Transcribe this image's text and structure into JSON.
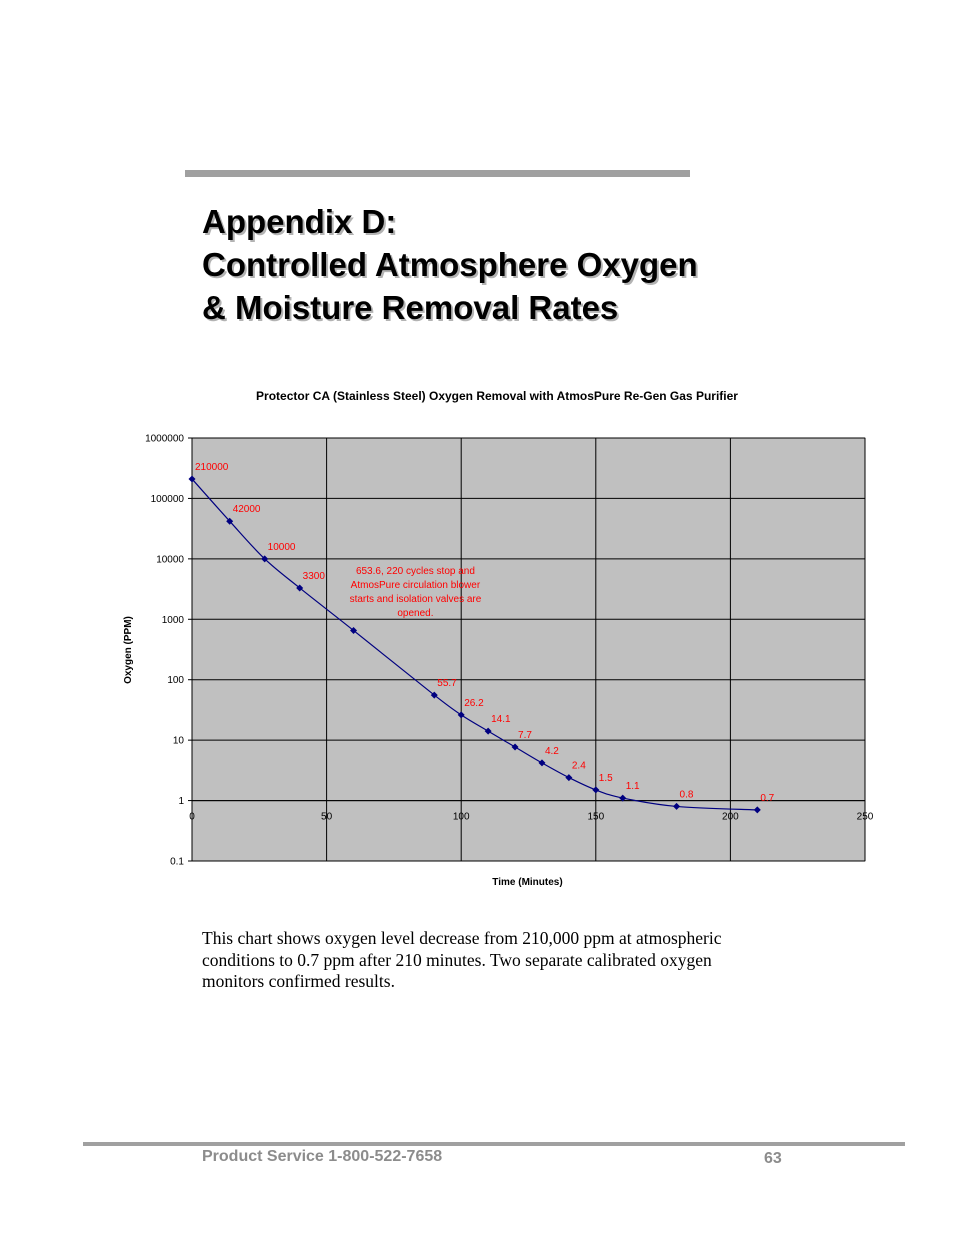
{
  "page": {
    "title_lines": [
      "Appendix D:",
      "Controlled Atmosphere Oxygen",
      "& Moisture Removal Rates"
    ],
    "caption_lines": [
      "This chart shows oxygen level decrease from 210,000 ppm at atmospheric",
      "conditions to 0.7 ppm after 210 minutes.  Two separate calibrated oxygen",
      "monitors confirmed results."
    ],
    "footer": {
      "service": "Product Service 1-800-522-7658",
      "page_number": "63"
    }
  },
  "chart_data": {
    "type": "line",
    "title": "Protector CA (Stainless Steel) Oxygen Removal with AtmosPure Re-Gen Gas Purifier",
    "xlabel": "Time (Minutes)",
    "ylabel": "Oxygen (PPM)",
    "yscale": "log",
    "xlim": [
      0,
      250
    ],
    "ylim": [
      0.1,
      1000000
    ],
    "x_ticks": [
      "0",
      "50",
      "100",
      "150",
      "200",
      "250"
    ],
    "y_ticks": [
      "1000000",
      "100000",
      "10000",
      "1000",
      "100",
      "10",
      "1",
      "0.1"
    ],
    "series": [
      {
        "name": "Oxygen",
        "x": [
          0,
          14,
          27,
          40,
          60,
          90,
          100,
          110,
          120,
          130,
          140,
          150,
          160,
          180,
          210
        ],
        "y": [
          210000,
          42000,
          10000,
          3300,
          653.6,
          55.7,
          26.2,
          14.1,
          7.7,
          4.2,
          2.4,
          1.5,
          1.1,
          0.8,
          0.7
        ],
        "labels": [
          "210000",
          "42000",
          "10000",
          "3300",
          "",
          "55.7",
          "26.2",
          "14.1",
          "7.7",
          "4.2",
          "2.4",
          "1.5",
          "1.1",
          "0.8",
          "0.7"
        ]
      }
    ],
    "annotation": [
      "653.6, 220 cycles stop and",
      "AtmosPure circulation blower",
      "starts and isolation valves are",
      "opened."
    ],
    "colors": {
      "plot_bg": "#c0c0c0",
      "line": "#000080",
      "labels": "#ff0000",
      "grid": "#000000"
    }
  }
}
